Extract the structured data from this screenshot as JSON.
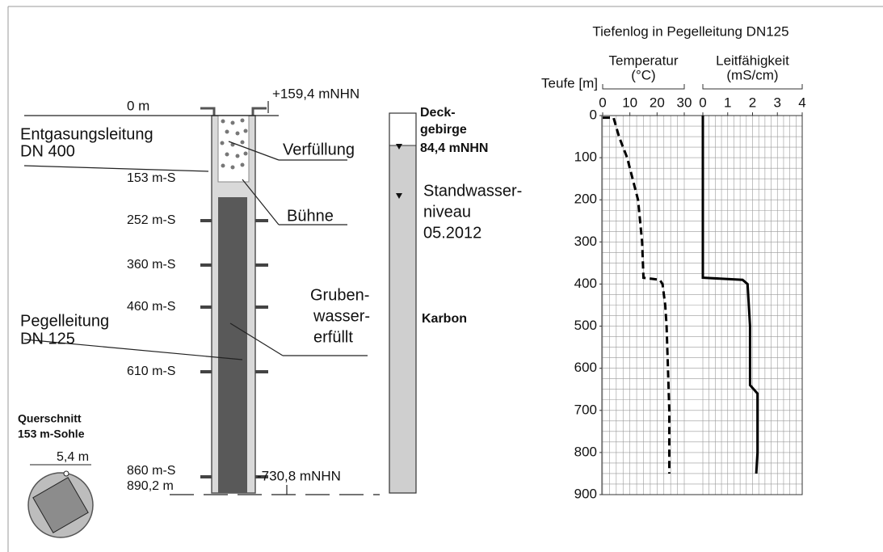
{
  "diagram": {
    "elevation_top": "+159,4 mNHN",
    "depth_top": "0 m",
    "degassing_pipe": [
      "Entgasungsleitung",
      "DN 400"
    ],
    "backfill": "Verfüllung",
    "stage": "Bühne",
    "levels": [
      "153 m-S",
      "252 m-S",
      "360 m-S",
      "460 m-S",
      "610 m-S",
      "860 m-S"
    ],
    "depth_bottom": "890,2 m",
    "elevation_bottom": "-730,8 mNHN",
    "gauge_pipe": [
      "Pegelleitung",
      "DN 125"
    ],
    "mine_water": [
      "Gruben-",
      "wasser-",
      "erfüllt"
    ],
    "cross_section": [
      "Querschnitt",
      "153  m-Sohle"
    ],
    "diameter": "5,4 m",
    "overburden": [
      "Deck-",
      "gebirge",
      "84,4 mNHN"
    ],
    "water_level": [
      "Standwasser-",
      "niveau",
      "05.2012"
    ],
    "carboniferous": "Karbon"
  },
  "chart_data": {
    "type": "line",
    "title": "Tiefenlog in Pegelleitung DN125",
    "ylabel": "Teufe [m]",
    "ylim": [
      0,
      900
    ],
    "yticks": [
      0,
      100,
      200,
      300,
      400,
      500,
      600,
      700,
      800,
      900
    ],
    "y_inverted": true,
    "grid": true,
    "series": [
      {
        "name": "Temperatur",
        "unit": "(°C)",
        "color": "#000000",
        "dashed": true,
        "xlim": [
          0,
          30
        ],
        "xticks": [
          0,
          10,
          20,
          30
        ],
        "depth": [
          5,
          5,
          50,
          100,
          150,
          200,
          300,
          385,
          390,
          400,
          450,
          500,
          600,
          700,
          850
        ],
        "values": [
          0,
          4,
          6,
          9,
          11,
          13,
          14.5,
          15,
          21,
          22,
          23,
          23.5,
          24,
          24.5,
          24.5
        ]
      },
      {
        "name": "Leitfähigkeit",
        "unit": "(mS/cm)",
        "color": "#000000",
        "dashed": false,
        "xlim": [
          0,
          4
        ],
        "xticks": [
          0,
          1,
          2,
          3,
          4
        ],
        "depth": [
          0,
          385,
          390,
          400,
          500,
          640,
          660,
          800,
          850
        ],
        "values": [
          0,
          0,
          1.6,
          1.8,
          1.9,
          1.9,
          2.2,
          2.2,
          2.15
        ]
      }
    ]
  }
}
